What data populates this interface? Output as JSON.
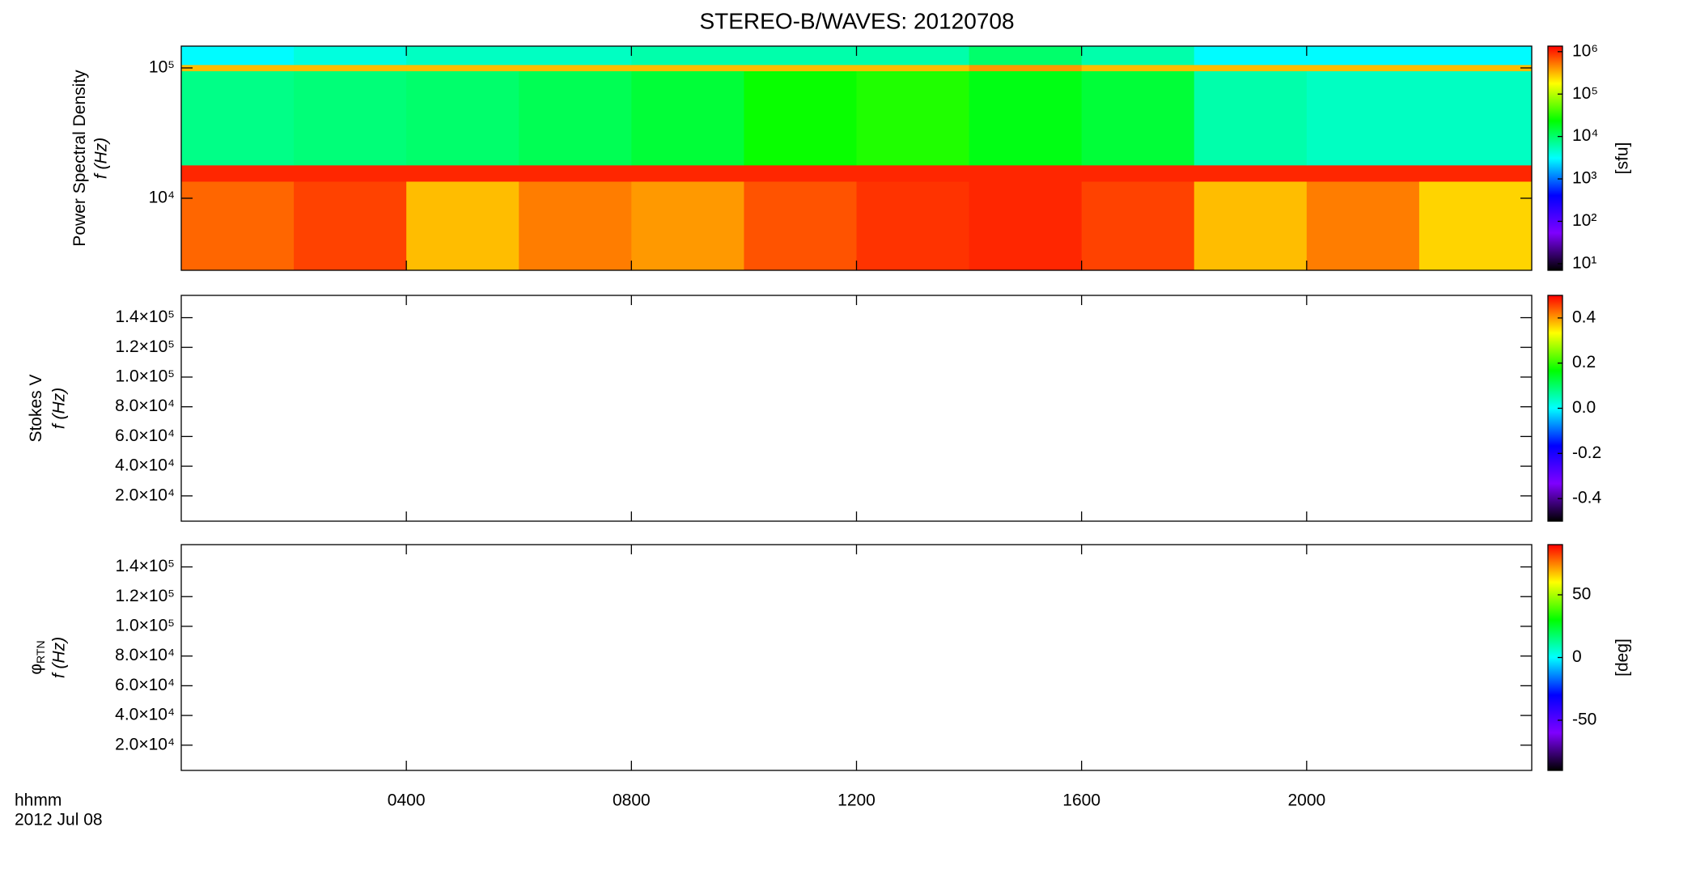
{
  "title": "STEREO-B/WAVES: 20120708",
  "chart_data": [
    {
      "type": "heatmap",
      "ylabel": "Power Spectral Density",
      "ylabel2": "f (Hz)",
      "y_scale": "log",
      "xlim": [
        0,
        24
      ],
      "xticks": [
        4,
        8,
        12,
        16,
        20
      ],
      "ylim": [
        2800,
        147000
      ],
      "yticks": [
        {
          "value": 10000,
          "label": "10⁴"
        },
        {
          "value": 100000,
          "label": "10⁵"
        }
      ],
      "x_edges": [
        0,
        2,
        4,
        6,
        8,
        10,
        12,
        14,
        16,
        18,
        20,
        22,
        24
      ],
      "y_edges": [
        2800,
        13500,
        18000,
        95000,
        106000,
        147000
      ],
      "z": [
        [
          600000,
          800000,
          300000,
          500000,
          400000,
          700000,
          900000,
          1000000,
          800000,
          300000,
          500000,
          250000
        ],
        [
          1000000,
          1000000,
          1000000,
          1000000,
          1000000,
          1000000,
          1000000,
          1000000,
          1000000,
          1000000,
          1000000,
          1000000
        ],
        [
          8000,
          9000,
          10000,
          12000,
          15000,
          25000,
          30000,
          20000,
          15000,
          6000,
          5000,
          5000
        ],
        [
          300000,
          300000,
          300000,
          300000,
          300000,
          300000,
          300000,
          400000,
          300000,
          300000,
          300000,
          300000
        ],
        [
          3000,
          4000,
          5000,
          5000,
          6000,
          6000,
          6000,
          10000,
          6000,
          3000,
          3000,
          3000
        ]
      ],
      "c_scale": "log",
      "clim": [
        7,
        1350000
      ],
      "cticks": [
        {
          "value": 10,
          "label": "10¹"
        },
        {
          "value": 100,
          "label": "10²"
        },
        {
          "value": 1000,
          "label": "10³"
        },
        {
          "value": 10000,
          "label": "10⁴"
        },
        {
          "value": 100000,
          "label": "10⁵"
        },
        {
          "value": 1000000,
          "label": "10⁶"
        }
      ],
      "clabel": "[sfu]",
      "colormap": [
        "#000000",
        "#7f00ff",
        "#0000ff",
        "#00ffff",
        "#00ff00",
        "#ffff00",
        "#ff0000"
      ]
    },
    {
      "type": "heatmap",
      "ylabel": "Stokes V",
      "ylabel2": "f (Hz)",
      "xlim": [
        0,
        24
      ],
      "xticks": [
        4,
        8,
        12,
        16,
        20
      ],
      "ylim": [
        3000,
        155000
      ],
      "yticks": [
        {
          "value": 20000,
          "label": "2.0×10⁴"
        },
        {
          "value": 40000,
          "label": "4.0×10⁴"
        },
        {
          "value": 60000,
          "label": "6.0×10⁴"
        },
        {
          "value": 80000,
          "label": "8.0×10⁴"
        },
        {
          "value": 100000,
          "label": "1.0×10⁵"
        },
        {
          "value": 120000,
          "label": "1.2×10⁵"
        },
        {
          "value": 140000,
          "label": "1.4×10⁵"
        }
      ],
      "clim": [
        -0.5,
        0.5
      ],
      "cticks": [
        -0.4,
        -0.2,
        {
          "value": 0,
          "label": "0.0"
        },
        0.2,
        0.4
      ],
      "colormap": [
        "#000000",
        "#7f00ff",
        "#0000ff",
        "#00ffff",
        "#00ff00",
        "#ffff00",
        "#ff0000"
      ]
    },
    {
      "type": "heatmap",
      "ylabel": "φ",
      "ylabel_sub": "RTN",
      "ylabel2": "f (Hz)",
      "xlim": [
        0,
        24
      ],
      "xticks": [
        {
          "value": 4,
          "label": "0400"
        },
        {
          "value": 8,
          "label": "0800"
        },
        {
          "value": 12,
          "label": "1200"
        },
        {
          "value": 16,
          "label": "1600"
        },
        {
          "value": 20,
          "label": "2000"
        }
      ],
      "xlabel": "hhmm",
      "xlabel2": "2012 Jul 08",
      "ylim": [
        3000,
        155000
      ],
      "yticks": [
        {
          "value": 20000,
          "label": "2.0×10⁴"
        },
        {
          "value": 40000,
          "label": "4.0×10⁴"
        },
        {
          "value": 60000,
          "label": "6.0×10⁴"
        },
        {
          "value": 80000,
          "label": "8.0×10⁴"
        },
        {
          "value": 100000,
          "label": "1.0×10⁵"
        },
        {
          "value": 120000,
          "label": "1.2×10⁵"
        },
        {
          "value": 140000,
          "label": "1.4×10⁵"
        }
      ],
      "clim": [
        -90,
        90
      ],
      "cticks": [
        -50,
        0,
        50
      ],
      "clabel": "[deg]",
      "colormap": [
        "#000000",
        "#7f00ff",
        "#0000ff",
        "#00ffff",
        "#00ff00",
        "#ffff00",
        "#ff0000"
      ]
    }
  ]
}
